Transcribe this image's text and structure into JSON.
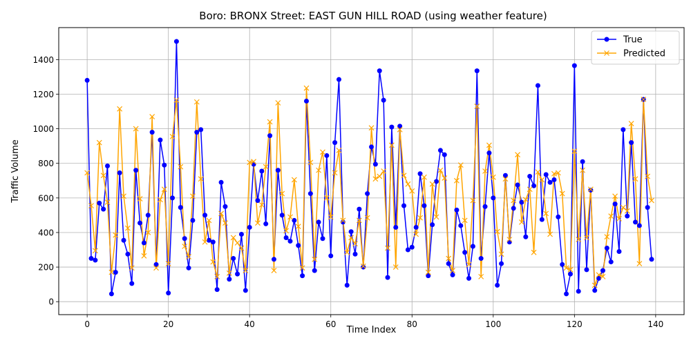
{
  "chart_data": {
    "type": "line",
    "title": "Boro: BRONX Street: EAST GUN HILL ROAD (using weather feature)",
    "xlabel": "Time Index",
    "ylabel": "Traffic Volume",
    "xlim": [
      -7,
      147
    ],
    "ylim": [
      -75,
      1585
    ],
    "xticks": [
      0,
      20,
      40,
      60,
      80,
      100,
      120,
      140
    ],
    "yticks": [
      0,
      200,
      400,
      600,
      800,
      1000,
      1200,
      1400
    ],
    "grid": true,
    "legend_position": "top-right",
    "series": [
      {
        "name": "True",
        "color": "#0000ff",
        "marker": "circle",
        "values": [
          1280,
          250,
          240,
          570,
          535,
          785,
          45,
          170,
          745,
          355,
          275,
          105,
          760,
          455,
          340,
          500,
          980,
          215,
          935,
          790,
          50,
          600,
          1505,
          545,
          365,
          195,
          470,
          980,
          995,
          500,
          355,
          345,
          70,
          690,
          550,
          130,
          250,
          160,
          390,
          65,
          430,
          795,
          585,
          755,
          450,
          960,
          245,
          760,
          500,
          370,
          350,
          470,
          325,
          150,
          1160,
          625,
          180,
          460,
          365,
          845,
          265,
          920,
          1285,
          460,
          95,
          405,
          275,
          535,
          200,
          625,
          895,
          795,
          1335,
          1165,
          140,
          1010,
          430,
          1015,
          555,
          300,
          315,
          430,
          740,
          555,
          150,
          445,
          695,
          875,
          850,
          220,
          155,
          530,
          440,
          285,
          135,
          320,
          1335,
          250,
          550,
          860,
          600,
          95,
          220,
          730,
          345,
          540,
          675,
          575,
          375,
          725,
          670,
          1250,
          475,
          735,
          690,
          705,
          490,
          215,
          45,
          160,
          1365,
          60,
          810,
          185,
          645,
          65,
          135,
          180,
          310,
          230,
          565,
          290,
          995,
          495,
          920,
          460,
          440,
          1170,
          545,
          245
        ]
      },
      {
        "name": "Predicted",
        "color": "#ffa500",
        "marker": "x",
        "values": [
          745,
          555,
          295,
          920,
          730,
          575,
          170,
          385,
          1115,
          610,
          425,
          195,
          1000,
          595,
          265,
          400,
          1070,
          195,
          590,
          650,
          220,
          955,
          1165,
          780,
          320,
          260,
          610,
          1155,
          710,
          345,
          470,
          230,
          145,
          510,
          455,
          165,
          370,
          340,
          310,
          180,
          805,
          810,
          455,
          560,
          780,
          1040,
          180,
          1150,
          625,
          410,
          490,
          705,
          435,
          195,
          1235,
          805,
          245,
          760,
          865,
          600,
          490,
          745,
          875,
          470,
          285,
          370,
          335,
          470,
          205,
          485,
          1005,
          710,
          725,
          755,
          310,
          905,
          200,
          995,
          730,
          680,
          640,
          390,
          485,
          720,
          170,
          680,
          490,
          760,
          715,
          250,
          180,
          700,
          790,
          470,
          215,
          585,
          1130,
          145,
          755,
          905,
          720,
          405,
          275,
          710,
          360,
          585,
          850,
          460,
          590,
          650,
          285,
          750,
          705,
          510,
          390,
          740,
          745,
          625,
          195,
          185,
          870,
          360,
          760,
          370,
          650,
          95,
          155,
          145,
          375,
          495,
          610,
          480,
          545,
          525,
          1030,
          710,
          220,
          1170,
          725,
          585
        ]
      }
    ]
  }
}
